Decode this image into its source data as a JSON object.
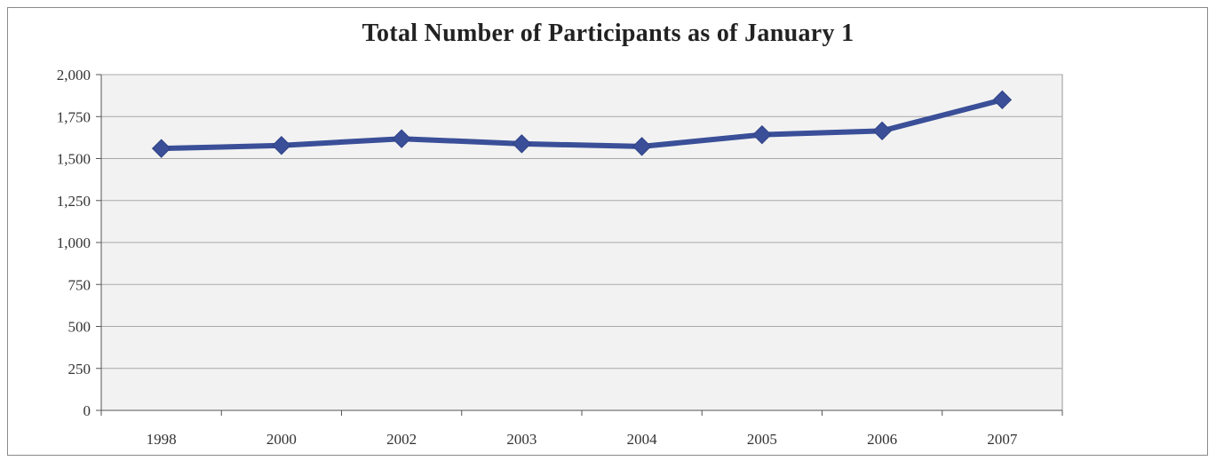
{
  "chart_data": {
    "type": "line",
    "title": "Total Number of Participants as of January 1",
    "xlabel": "",
    "ylabel": "",
    "categories": [
      "1998",
      "2000",
      "2002",
      "2003",
      "2004",
      "2005",
      "2006",
      "2007"
    ],
    "series": [
      {
        "values": [
          1560,
          1578,
          1618,
          1588,
          1572,
          1642,
          1665,
          1850
        ],
        "color": "#3a4f98",
        "marker": "diamond"
      }
    ],
    "ylim": [
      0,
      2000
    ],
    "yticks": [
      "0",
      "250",
      "500",
      "750",
      "1,000",
      "1,250",
      "1,500",
      "1,750",
      "2,000"
    ],
    "grid": true,
    "legend": "none",
    "plot_background": "#f2f2f2"
  }
}
